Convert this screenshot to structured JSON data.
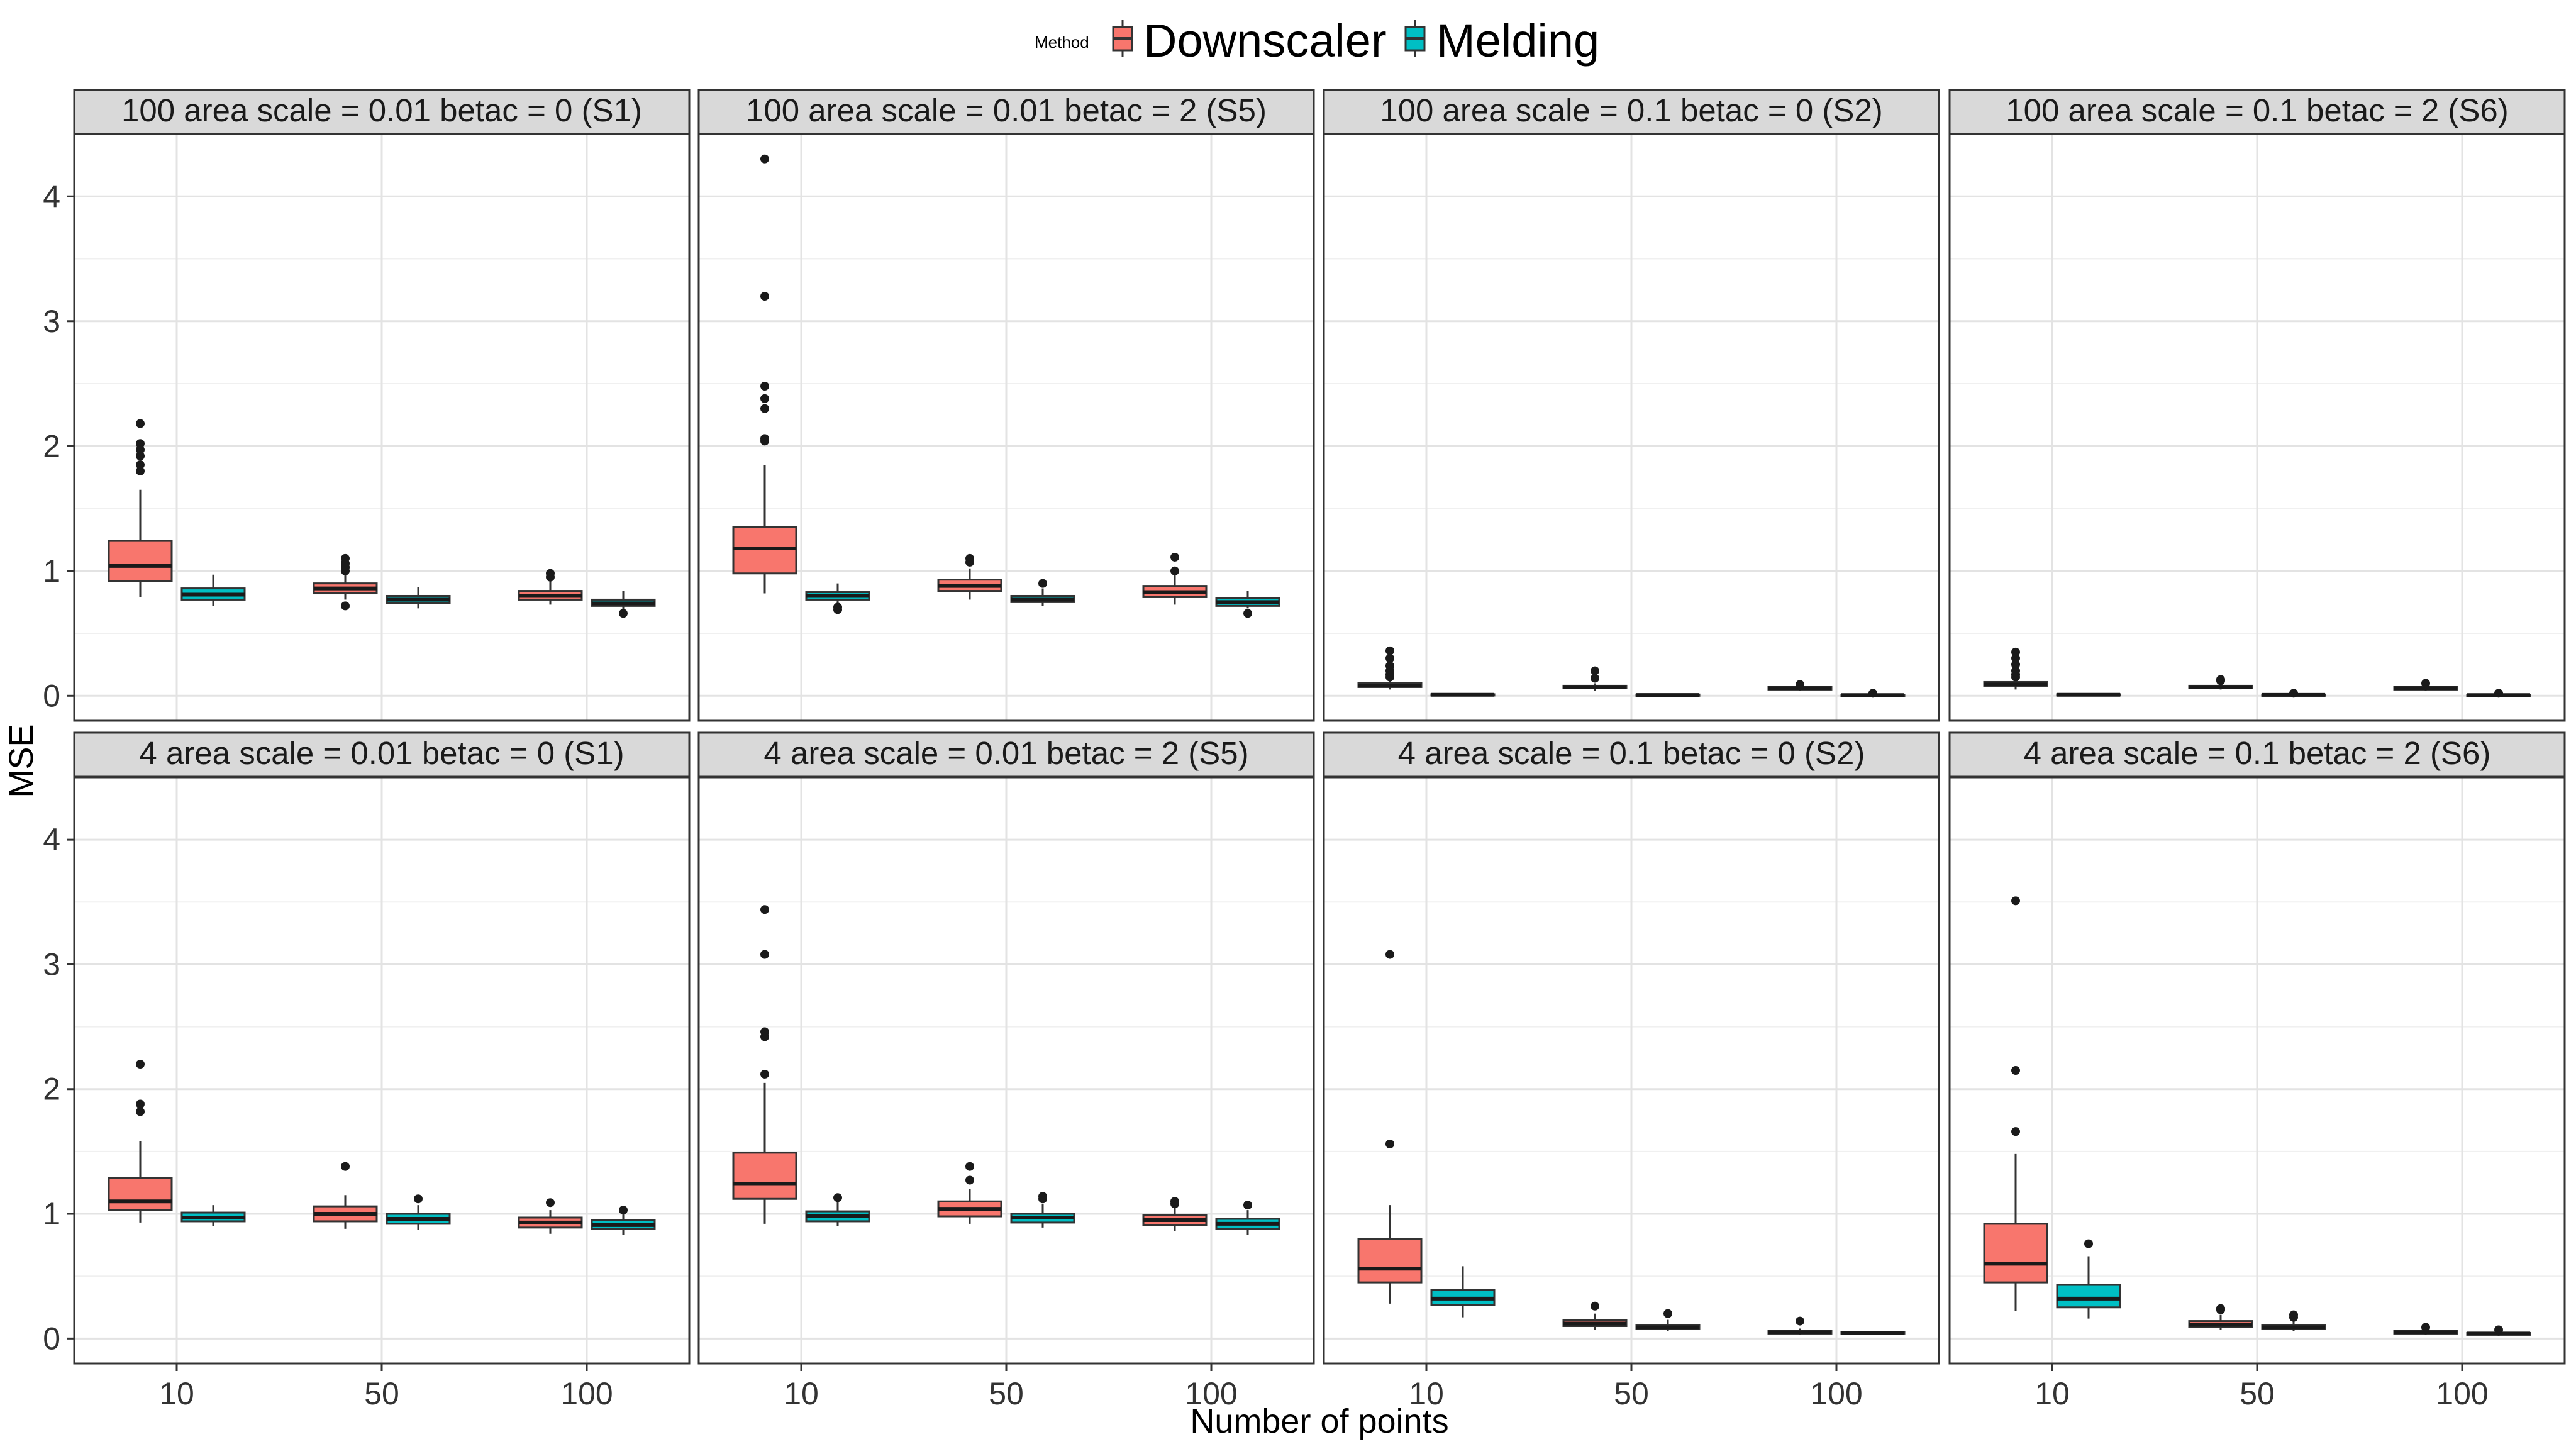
{
  "chart_data": {
    "type": "box",
    "ylabel": "MSE",
    "xlabel": "Number of points",
    "categories": [
      "10",
      "50",
      "100"
    ],
    "ylim": [
      -0.2,
      4.5
    ],
    "yticks": [
      0,
      1,
      2,
      3,
      4
    ],
    "grid": true,
    "legend": {
      "title": "Method",
      "placement": "top",
      "entries": [
        {
          "name": "Downscaler",
          "color": "#F8766D"
        },
        {
          "name": "Melding",
          "color": "#00BFC4"
        }
      ]
    },
    "panels": [
      {
        "title": "100 area scale = 0.01 betac = 0 (S1)",
        "groups": [
          {
            "method": "Downscaler",
            "x": "10",
            "whisker_low": 0.79,
            "q1": 0.92,
            "median": 1.04,
            "q3": 1.24,
            "whisker_high": 1.65,
            "outliers": [
              1.8,
              1.85,
              1.92,
              1.97,
              2.02,
              2.18
            ]
          },
          {
            "method": "Melding",
            "x": "10",
            "whisker_low": 0.72,
            "q1": 0.77,
            "median": 0.81,
            "q3": 0.86,
            "whisker_high": 0.97,
            "outliers": []
          },
          {
            "method": "Downscaler",
            "x": "50",
            "whisker_low": 0.77,
            "q1": 0.82,
            "median": 0.86,
            "q3": 0.9,
            "whisker_high": 0.98,
            "outliers": [
              0.72,
              1.0,
              1.03,
              1.06,
              1.1
            ]
          },
          {
            "method": "Melding",
            "x": "50",
            "whisker_low": 0.7,
            "q1": 0.74,
            "median": 0.77,
            "q3": 0.8,
            "whisker_high": 0.87,
            "outliers": []
          },
          {
            "method": "Downscaler",
            "x": "100",
            "whisker_low": 0.73,
            "q1": 0.77,
            "median": 0.8,
            "q3": 0.84,
            "whisker_high": 0.93,
            "outliers": [
              0.95,
              0.98
            ]
          },
          {
            "method": "Melding",
            "x": "100",
            "whisker_low": 0.69,
            "q1": 0.72,
            "median": 0.74,
            "q3": 0.77,
            "whisker_high": 0.84,
            "outliers": [
              0.66
            ]
          }
        ]
      },
      {
        "title": "100 area scale = 0.01 betac = 2 (S5)",
        "groups": [
          {
            "method": "Downscaler",
            "x": "10",
            "whisker_low": 0.82,
            "q1": 0.98,
            "median": 1.18,
            "q3": 1.35,
            "whisker_high": 1.85,
            "outliers": [
              2.04,
              2.06,
              2.3,
              2.38,
              2.48,
              3.2,
              4.3
            ]
          },
          {
            "method": "Melding",
            "x": "10",
            "whisker_low": 0.72,
            "q1": 0.77,
            "median": 0.8,
            "q3": 0.83,
            "whisker_high": 0.9,
            "outliers": [
              0.69,
              0.71
            ]
          },
          {
            "method": "Downscaler",
            "x": "50",
            "whisker_low": 0.77,
            "q1": 0.84,
            "median": 0.88,
            "q3": 0.93,
            "whisker_high": 1.02,
            "outliers": [
              1.07,
              1.1
            ]
          },
          {
            "method": "Melding",
            "x": "50",
            "whisker_low": 0.72,
            "q1": 0.75,
            "median": 0.77,
            "q3": 0.8,
            "whisker_high": 0.86,
            "outliers": [
              0.9
            ]
          },
          {
            "method": "Downscaler",
            "x": "100",
            "whisker_low": 0.73,
            "q1": 0.79,
            "median": 0.83,
            "q3": 0.88,
            "whisker_high": 0.97,
            "outliers": [
              1.0,
              1.11
            ]
          },
          {
            "method": "Melding",
            "x": "100",
            "whisker_low": 0.7,
            "q1": 0.72,
            "median": 0.75,
            "q3": 0.78,
            "whisker_high": 0.84,
            "outliers": [
              0.66
            ]
          }
        ]
      },
      {
        "title": "100 area scale = 0.1 betac = 0 (S2)",
        "groups": [
          {
            "method": "Downscaler",
            "x": "10",
            "whisker_low": 0.05,
            "q1": 0.07,
            "median": 0.08,
            "q3": 0.1,
            "whisker_high": 0.13,
            "outliers": [
              0.15,
              0.17,
              0.2,
              0.24,
              0.3,
              0.36
            ]
          },
          {
            "method": "Melding",
            "x": "10",
            "whisker_low": 0.0,
            "q1": 0.005,
            "median": 0.008,
            "q3": 0.012,
            "whisker_high": 0.02,
            "outliers": []
          },
          {
            "method": "Downscaler",
            "x": "50",
            "whisker_low": 0.04,
            "q1": 0.06,
            "median": 0.07,
            "q3": 0.08,
            "whisker_high": 0.1,
            "outliers": [
              0.14,
              0.2
            ]
          },
          {
            "method": "Melding",
            "x": "50",
            "whisker_low": 0.0,
            "q1": 0.003,
            "median": 0.006,
            "q3": 0.01,
            "whisker_high": 0.015,
            "outliers": []
          },
          {
            "method": "Downscaler",
            "x": "100",
            "whisker_low": 0.04,
            "q1": 0.05,
            "median": 0.06,
            "q3": 0.07,
            "whisker_high": 0.08,
            "outliers": [
              0.09
            ]
          },
          {
            "method": "Melding",
            "x": "100",
            "whisker_low": 0.0,
            "q1": 0.003,
            "median": 0.005,
            "q3": 0.008,
            "whisker_high": 0.012,
            "outliers": [
              0.02
            ]
          }
        ]
      },
      {
        "title": "100 area scale = 0.1 betac = 2 (S6)",
        "groups": [
          {
            "method": "Downscaler",
            "x": "10",
            "whisker_low": 0.05,
            "q1": 0.08,
            "median": 0.09,
            "q3": 0.11,
            "whisker_high": 0.14,
            "outliers": [
              0.15,
              0.17,
              0.2,
              0.25,
              0.3,
              0.35
            ]
          },
          {
            "method": "Melding",
            "x": "10",
            "whisker_low": 0.0,
            "q1": 0.005,
            "median": 0.008,
            "q3": 0.012,
            "whisker_high": 0.02,
            "outliers": []
          },
          {
            "method": "Downscaler",
            "x": "50",
            "whisker_low": 0.05,
            "q1": 0.06,
            "median": 0.07,
            "q3": 0.08,
            "whisker_high": 0.1,
            "outliers": [
              0.12,
              0.13
            ]
          },
          {
            "method": "Melding",
            "x": "50",
            "whisker_low": 0.0,
            "q1": 0.004,
            "median": 0.007,
            "q3": 0.01,
            "whisker_high": 0.015,
            "outliers": [
              0.02
            ]
          },
          {
            "method": "Downscaler",
            "x": "100",
            "whisker_low": 0.04,
            "q1": 0.05,
            "median": 0.06,
            "q3": 0.07,
            "whisker_high": 0.08,
            "outliers": [
              0.1
            ]
          },
          {
            "method": "Melding",
            "x": "100",
            "whisker_low": 0.0,
            "q1": 0.003,
            "median": 0.005,
            "q3": 0.008,
            "whisker_high": 0.012,
            "outliers": [
              0.02
            ]
          }
        ]
      },
      {
        "title": "4 area scale = 0.01 betac = 0 (S1)",
        "groups": [
          {
            "method": "Downscaler",
            "x": "10",
            "whisker_low": 0.93,
            "q1": 1.03,
            "median": 1.1,
            "q3": 1.29,
            "whisker_high": 1.58,
            "outliers": [
              1.82,
              1.88,
              2.2
            ]
          },
          {
            "method": "Melding",
            "x": "10",
            "whisker_low": 0.9,
            "q1": 0.94,
            "median": 0.97,
            "q3": 1.01,
            "whisker_high": 1.07,
            "outliers": []
          },
          {
            "method": "Downscaler",
            "x": "50",
            "whisker_low": 0.88,
            "q1": 0.94,
            "median": 1.0,
            "q3": 1.06,
            "whisker_high": 1.15,
            "outliers": [
              1.38
            ]
          },
          {
            "method": "Melding",
            "x": "50",
            "whisker_low": 0.87,
            "q1": 0.92,
            "median": 0.96,
            "q3": 1.0,
            "whisker_high": 1.07,
            "outliers": [
              1.12
            ]
          },
          {
            "method": "Downscaler",
            "x": "100",
            "whisker_low": 0.84,
            "q1": 0.89,
            "median": 0.93,
            "q3": 0.97,
            "whisker_high": 1.03,
            "outliers": [
              1.09
            ]
          },
          {
            "method": "Melding",
            "x": "100",
            "whisker_low": 0.83,
            "q1": 0.88,
            "median": 0.91,
            "q3": 0.95,
            "whisker_high": 1.0,
            "outliers": [
              1.03
            ]
          }
        ]
      },
      {
        "title": "4 area scale = 0.01 betac = 2 (S5)",
        "groups": [
          {
            "method": "Downscaler",
            "x": "10",
            "whisker_low": 0.92,
            "q1": 1.12,
            "median": 1.24,
            "q3": 1.49,
            "whisker_high": 2.05,
            "outliers": [
              2.12,
              2.42,
              2.46,
              3.08,
              3.44
            ]
          },
          {
            "method": "Melding",
            "x": "10",
            "whisker_low": 0.9,
            "q1": 0.94,
            "median": 0.98,
            "q3": 1.02,
            "whisker_high": 1.1,
            "outliers": [
              1.13
            ]
          },
          {
            "method": "Downscaler",
            "x": "50",
            "whisker_low": 0.92,
            "q1": 0.98,
            "median": 1.04,
            "q3": 1.1,
            "whisker_high": 1.2,
            "outliers": [
              1.27,
              1.38
            ]
          },
          {
            "method": "Melding",
            "x": "50",
            "whisker_low": 0.89,
            "q1": 0.93,
            "median": 0.97,
            "q3": 1.0,
            "whisker_high": 1.08,
            "outliers": [
              1.12,
              1.14
            ]
          },
          {
            "method": "Downscaler",
            "x": "100",
            "whisker_low": 0.86,
            "q1": 0.91,
            "median": 0.95,
            "q3": 0.99,
            "whisker_high": 1.05,
            "outliers": [
              1.08,
              1.1
            ]
          },
          {
            "method": "Melding",
            "x": "100",
            "whisker_low": 0.83,
            "q1": 0.88,
            "median": 0.92,
            "q3": 0.96,
            "whisker_high": 1.03,
            "outliers": [
              1.07
            ]
          }
        ]
      },
      {
        "title": "4 area scale = 0.1 betac = 0 (S2)",
        "groups": [
          {
            "method": "Downscaler",
            "x": "10",
            "whisker_low": 0.28,
            "q1": 0.45,
            "median": 0.56,
            "q3": 0.8,
            "whisker_high": 1.07,
            "outliers": [
              1.56,
              3.08
            ]
          },
          {
            "method": "Melding",
            "x": "10",
            "whisker_low": 0.17,
            "q1": 0.27,
            "median": 0.32,
            "q3": 0.39,
            "whisker_high": 0.58,
            "outliers": []
          },
          {
            "method": "Downscaler",
            "x": "50",
            "whisker_low": 0.07,
            "q1": 0.1,
            "median": 0.12,
            "q3": 0.15,
            "whisker_high": 0.2,
            "outliers": [
              0.26
            ]
          },
          {
            "method": "Melding",
            "x": "50",
            "whisker_low": 0.06,
            "q1": 0.08,
            "median": 0.09,
            "q3": 0.11,
            "whisker_high": 0.15,
            "outliers": [
              0.2
            ]
          },
          {
            "method": "Downscaler",
            "x": "100",
            "whisker_low": 0.03,
            "q1": 0.04,
            "median": 0.05,
            "q3": 0.06,
            "whisker_high": 0.08,
            "outliers": [
              0.14
            ]
          },
          {
            "method": "Melding",
            "x": "100",
            "whisker_low": 0.03,
            "q1": 0.04,
            "median": 0.045,
            "q3": 0.05,
            "whisker_high": 0.06,
            "outliers": []
          }
        ]
      },
      {
        "title": "4 area scale = 0.1 betac = 2 (S6)",
        "groups": [
          {
            "method": "Downscaler",
            "x": "10",
            "whisker_low": 0.22,
            "q1": 0.45,
            "median": 0.6,
            "q3": 0.92,
            "whisker_high": 1.48,
            "outliers": [
              1.66,
              2.15,
              3.51
            ]
          },
          {
            "method": "Melding",
            "x": "10",
            "whisker_low": 0.16,
            "q1": 0.25,
            "median": 0.32,
            "q3": 0.43,
            "whisker_high": 0.66,
            "outliers": [
              0.76
            ]
          },
          {
            "method": "Downscaler",
            "x": "50",
            "whisker_low": 0.07,
            "q1": 0.09,
            "median": 0.11,
            "q3": 0.14,
            "whisker_high": 0.19,
            "outliers": [
              0.23,
              0.24
            ]
          },
          {
            "method": "Melding",
            "x": "50",
            "whisker_low": 0.06,
            "q1": 0.08,
            "median": 0.09,
            "q3": 0.11,
            "whisker_high": 0.14,
            "outliers": [
              0.17,
              0.19
            ]
          },
          {
            "method": "Downscaler",
            "x": "100",
            "whisker_low": 0.03,
            "q1": 0.04,
            "median": 0.05,
            "q3": 0.06,
            "whisker_high": 0.07,
            "outliers": [
              0.09
            ]
          },
          {
            "method": "Melding",
            "x": "100",
            "whisker_low": 0.02,
            "q1": 0.03,
            "median": 0.04,
            "q3": 0.045,
            "whisker_high": 0.05,
            "outliers": [
              0.07
            ]
          }
        ]
      }
    ]
  }
}
